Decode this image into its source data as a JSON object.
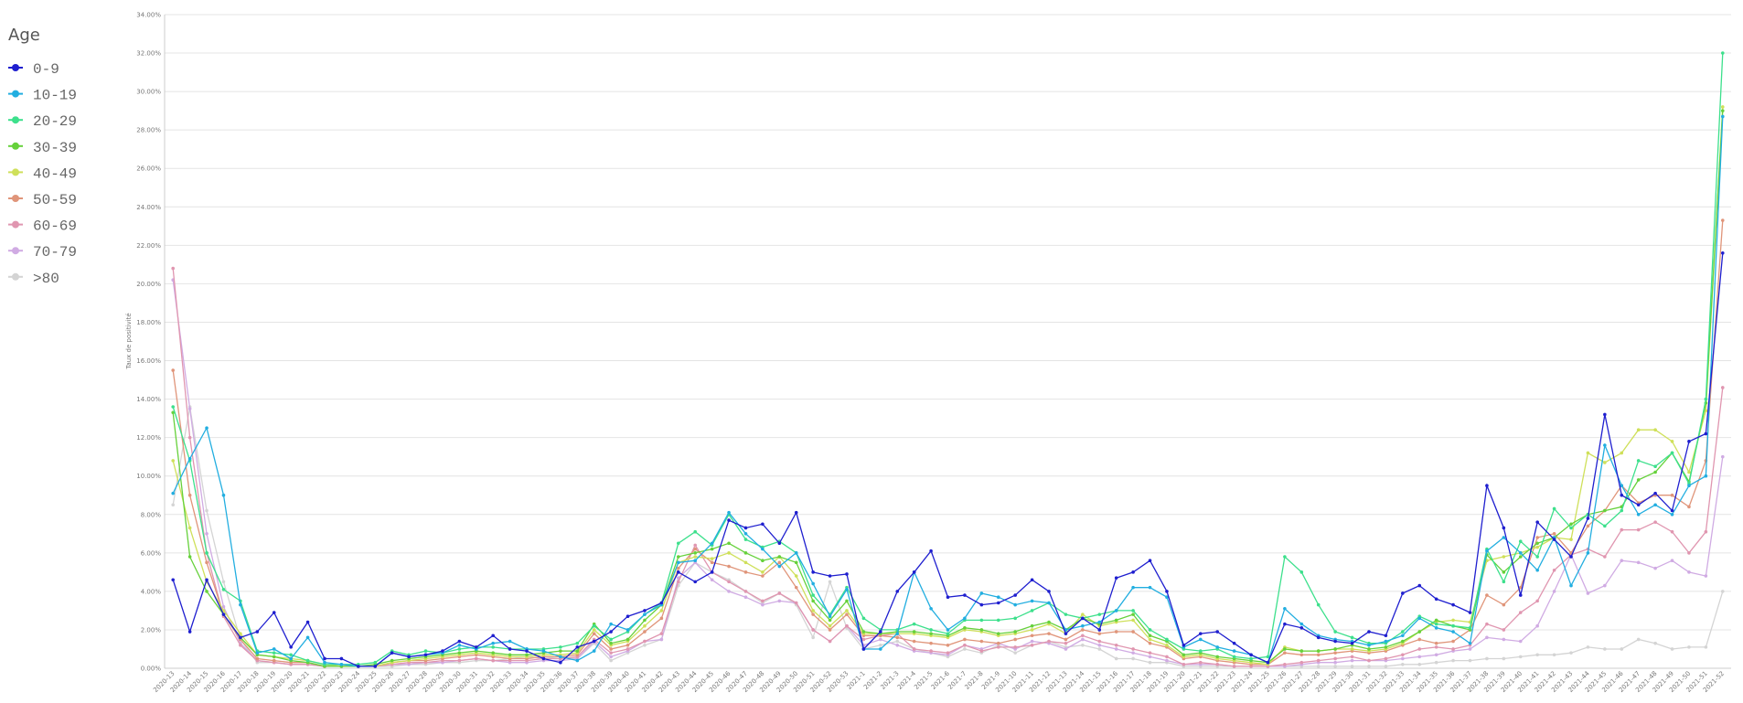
{
  "chart_data": {
    "type": "line",
    "y_label": "Taux de positivité",
    "legend_title": "Age",
    "legend": "left",
    "grid": true,
    "categories": [
      "2020-13",
      "2020-14",
      "2020-15",
      "2020-16",
      "2020-17",
      "2020-18",
      "2020-19",
      "2020-20",
      "2020-21",
      "2020-22",
      "2020-23",
      "2020-24",
      "2020-25",
      "2020-26",
      "2020-27",
      "2020-28",
      "2020-29",
      "2020-30",
      "2020-31",
      "2020-32",
      "2020-33",
      "2020-34",
      "2020-35",
      "2020-36",
      "2020-37",
      "2020-38",
      "2020-39",
      "2020-40",
      "2020-41",
      "2020-42",
      "2020-43",
      "2020-44",
      "2020-45",
      "2020-46",
      "2020-47",
      "2020-48",
      "2020-49",
      "2020-50",
      "2020-51",
      "2020-52",
      "2020-53",
      "2021-1",
      "2021-2",
      "2021-3",
      "2021-4",
      "2021-5",
      "2021-6",
      "2021-7",
      "2021-8",
      "2021-9",
      "2021-10",
      "2021-11",
      "2021-12",
      "2021-13",
      "2021-14",
      "2021-15",
      "2021-16",
      "2021-17",
      "2021-18",
      "2021-19",
      "2021-20",
      "2021-21",
      "2021-22",
      "2021-23",
      "2021-24",
      "2021-25",
      "2021-26",
      "2021-27",
      "2021-28",
      "2021-29",
      "2021-30",
      "2021-31",
      "2021-32",
      "2021-33",
      "2021-34",
      "2021-35",
      "2021-36",
      "2021-37",
      "2021-38",
      "2021-39",
      "2021-40",
      "2021-41",
      "2021-42",
      "2021-43",
      "2021-44",
      "2021-45",
      "2021-46",
      "2021-47",
      "2021-48",
      "2021-49",
      "2021-50",
      "2021-51",
      "2021-52"
    ],
    "ylim": [
      0,
      34
    ],
    "yticks": [
      {
        "value": 0,
        "label": "0.00%"
      },
      {
        "value": 2,
        "label": "2.00%"
      },
      {
        "value": 4,
        "label": "4.00%"
      },
      {
        "value": 6,
        "label": "6.00%"
      },
      {
        "value": 8,
        "label": "8.00%"
      },
      {
        "value": 10,
        "label": "10.00%"
      },
      {
        "value": 12,
        "label": "12.00%"
      },
      {
        "value": 14,
        "label": "14.00%"
      },
      {
        "value": 16,
        "label": "16.00%"
      },
      {
        "value": 18,
        "label": "18.00%"
      },
      {
        "value": 20,
        "label": "20.00%"
      },
      {
        "value": 22,
        "label": "22.00%"
      },
      {
        "value": 24,
        "label": "24.00%"
      },
      {
        "value": 26,
        "label": "26.00%"
      },
      {
        "value": 28,
        "label": "28.00%"
      },
      {
        "value": 30,
        "label": "30.00%"
      },
      {
        "value": 32,
        "label": "32.00%"
      },
      {
        "value": 34,
        "label": "34.00%"
      }
    ],
    "series": [
      {
        "name": "0-9",
        "color": "#1f1fcf",
        "values": [
          4.6,
          1.9,
          4.6,
          2.8,
          1.6,
          1.9,
          2.9,
          1.1,
          2.4,
          0.5,
          0.5,
          0.1,
          0.1,
          0.8,
          0.6,
          0.7,
          0.9,
          1.4,
          1.1,
          1.7,
          1.0,
          0.9,
          0.5,
          0.3,
          1.1,
          1.4,
          1.9,
          2.7,
          3.0,
          3.4,
          5.0,
          4.5,
          5.0,
          7.7,
          7.3,
          7.5,
          6.5,
          8.1,
          5.0,
          4.8,
          4.9,
          1.0,
          1.9,
          4.0,
          5.0,
          6.1,
          3.7,
          3.8,
          3.3,
          3.4,
          3.8,
          4.6,
          4.0,
          1.8,
          2.6,
          2.0,
          4.7,
          5.0,
          5.6,
          4.0,
          1.2,
          1.8,
          1.9,
          1.3,
          0.7,
          0.3,
          2.3,
          2.1,
          1.6,
          1.4,
          1.3,
          1.9,
          1.7,
          3.9,
          4.3,
          3.6,
          3.3,
          2.9,
          9.5,
          7.3,
          3.8,
          7.6,
          6.7,
          5.8,
          7.8,
          13.2,
          9.0,
          8.5,
          9.1,
          8.2,
          11.8,
          12.2,
          21.6
        ]
      },
      {
        "name": "10-19",
        "color": "#22aee0",
        "values": [
          9.1,
          10.9,
          12.5,
          9.0,
          3.3,
          0.8,
          1.0,
          0.5,
          1.6,
          0.3,
          0.2,
          0.1,
          0.1,
          0.8,
          0.6,
          0.7,
          0.8,
          1.2,
          1.0,
          1.3,
          1.4,
          1.0,
          0.9,
          0.6,
          0.4,
          0.9,
          2.3,
          2.0,
          2.8,
          3.3,
          5.5,
          5.6,
          6.5,
          8.1,
          7.0,
          6.2,
          5.3,
          6.0,
          4.4,
          2.7,
          4.1,
          1.0,
          1.0,
          1.8,
          5.0,
          3.1,
          2.0,
          2.6,
          3.9,
          3.7,
          3.3,
          3.5,
          3.4,
          2.0,
          2.2,
          2.4,
          3.0,
          4.2,
          4.2,
          3.7,
          1.1,
          1.5,
          1.1,
          0.9,
          0.7,
          0.3,
          3.1,
          2.3,
          1.7,
          1.5,
          1.4,
          1.2,
          1.4,
          1.7,
          2.6,
          2.1,
          1.9,
          1.3,
          6.1,
          6.8,
          6.0,
          5.1,
          6.8,
          4.3,
          6.0,
          11.6,
          9.5,
          8.0,
          8.5,
          8.0,
          9.5,
          10.0,
          28.7
        ]
      },
      {
        "name": "20-29",
        "color": "#3de08c",
        "values": [
          13.6,
          10.8,
          6.0,
          4.1,
          3.5,
          0.9,
          0.8,
          0.7,
          0.4,
          0.2,
          0.2,
          0.2,
          0.3,
          0.9,
          0.7,
          0.9,
          0.8,
          1.0,
          1.1,
          1.1,
          1.0,
          1.0,
          1.0,
          1.1,
          1.3,
          2.2,
          1.5,
          1.9,
          2.8,
          3.4,
          6.5,
          7.1,
          6.4,
          8.0,
          6.7,
          6.3,
          6.6,
          6.0,
          3.8,
          2.8,
          4.2,
          2.6,
          2.0,
          2.0,
          2.3,
          2.0,
          1.8,
          2.5,
          2.5,
          2.5,
          2.6,
          3.0,
          3.4,
          2.8,
          2.6,
          2.8,
          3.0,
          3.0,
          2.0,
          1.5,
          1.0,
          0.9,
          1.0,
          0.6,
          0.5,
          0.6,
          5.8,
          5.0,
          3.3,
          1.9,
          1.6,
          1.3,
          1.3,
          1.9,
          2.7,
          2.3,
          2.2,
          2.1,
          6.2,
          4.5,
          6.6,
          5.8,
          8.3,
          7.3,
          8.0,
          7.4,
          8.2,
          10.8,
          10.5,
          11.2,
          9.6,
          14.0,
          32.0
        ]
      },
      {
        "name": "30-39",
        "color": "#66d13b",
        "values": [
          13.3,
          5.8,
          4.0,
          2.8,
          1.6,
          0.7,
          0.6,
          0.4,
          0.3,
          0.1,
          0.1,
          0.1,
          0.2,
          0.4,
          0.5,
          0.6,
          0.7,
          0.8,
          0.9,
          0.8,
          0.7,
          0.7,
          0.8,
          0.9,
          0.9,
          2.3,
          1.3,
          1.5,
          2.5,
          3.3,
          5.8,
          6.0,
          6.2,
          6.5,
          6.0,
          5.6,
          5.8,
          5.5,
          3.5,
          2.5,
          3.5,
          1.9,
          1.8,
          1.9,
          1.9,
          1.8,
          1.7,
          2.1,
          2.0,
          1.8,
          1.9,
          2.2,
          2.4,
          2.0,
          2.6,
          2.3,
          2.5,
          2.8,
          1.7,
          1.4,
          0.7,
          0.8,
          0.6,
          0.5,
          0.4,
          0.3,
          1.0,
          0.9,
          0.9,
          1.0,
          1.2,
          1.0,
          1.1,
          1.4,
          1.9,
          2.5,
          2.2,
          2.0,
          5.9,
          5.0,
          5.8,
          6.5,
          6.8,
          7.5,
          8.0,
          8.2,
          8.4,
          9.8,
          10.2,
          11.2,
          9.7,
          13.8,
          29.0
        ]
      },
      {
        "name": "40-49",
        "color": "#cfe05a",
        "values": [
          10.8,
          7.3,
          4.5,
          3.0,
          1.8,
          0.7,
          0.6,
          0.5,
          0.4,
          0.2,
          0.1,
          0.1,
          0.1,
          0.3,
          0.4,
          0.5,
          0.6,
          0.7,
          0.8,
          0.7,
          0.6,
          0.6,
          0.7,
          0.7,
          0.8,
          2.0,
          1.2,
          1.4,
          2.2,
          3.0,
          5.5,
          5.8,
          5.7,
          6.0,
          5.5,
          5.0,
          5.8,
          4.8,
          3.0,
          2.2,
          3.0,
          1.8,
          1.8,
          1.8,
          1.8,
          1.7,
          1.6,
          2.0,
          1.9,
          1.7,
          1.8,
          2.0,
          2.3,
          1.8,
          2.8,
          2.2,
          2.4,
          2.5,
          1.5,
          1.2,
          0.6,
          0.7,
          0.5,
          0.4,
          0.3,
          0.2,
          1.1,
          0.9,
          0.9,
          1.0,
          1.0,
          0.9,
          1.0,
          1.3,
          1.9,
          2.4,
          2.5,
          2.4,
          5.6,
          5.8,
          6.0,
          6.3,
          6.8,
          6.7,
          11.2,
          10.7,
          11.2,
          12.4,
          12.4,
          11.8,
          10.2,
          13.4,
          29.2
        ]
      },
      {
        "name": "50-59",
        "color": "#e0957a",
        "values": [
          15.5,
          9.0,
          5.5,
          2.8,
          1.5,
          0.5,
          0.4,
          0.3,
          0.3,
          0.1,
          0.1,
          0.1,
          0.1,
          0.3,
          0.4,
          0.4,
          0.5,
          0.6,
          0.7,
          0.6,
          0.5,
          0.5,
          0.6,
          0.6,
          0.7,
          1.8,
          1.0,
          1.2,
          1.9,
          2.6,
          5.2,
          6.2,
          5.5,
          5.3,
          5.0,
          4.8,
          5.5,
          4.2,
          2.8,
          2.0,
          2.8,
          1.7,
          1.7,
          1.6,
          1.4,
          1.3,
          1.2,
          1.5,
          1.4,
          1.3,
          1.5,
          1.7,
          1.8,
          1.5,
          2.0,
          1.8,
          1.9,
          1.9,
          1.3,
          1.1,
          0.5,
          0.6,
          0.4,
          0.3,
          0.2,
          0.2,
          0.8,
          0.7,
          0.7,
          0.8,
          0.9,
          0.8,
          0.9,
          1.2,
          1.5,
          1.3,
          1.4,
          2.0,
          3.8,
          3.3,
          4.2,
          6.8,
          7.0,
          6.0,
          7.4,
          8.2,
          9.5,
          8.6,
          9.0,
          9.0,
          8.4,
          10.8,
          23.3
        ]
      },
      {
        "name": "60-69",
        "color": "#e096b0",
        "values": [
          20.8,
          12.0,
          6.0,
          2.7,
          1.2,
          0.4,
          0.3,
          0.2,
          0.2,
          0.1,
          0.1,
          0.1,
          0.1,
          0.2,
          0.3,
          0.3,
          0.4,
          0.4,
          0.5,
          0.4,
          0.4,
          0.4,
          0.5,
          0.5,
          0.6,
          1.5,
          0.8,
          1.0,
          1.4,
          1.8,
          4.5,
          6.4,
          5.0,
          4.5,
          4.0,
          3.5,
          3.9,
          3.4,
          2.0,
          1.4,
          2.2,
          1.5,
          1.7,
          1.8,
          1.0,
          0.9,
          0.8,
          1.2,
          0.9,
          1.1,
          1.1,
          1.2,
          1.4,
          1.3,
          1.7,
          1.4,
          1.2,
          1.0,
          0.8,
          0.6,
          0.2,
          0.3,
          0.2,
          0.1,
          0.1,
          0.1,
          0.2,
          0.3,
          0.4,
          0.5,
          0.6,
          0.4,
          0.5,
          0.7,
          1.0,
          1.1,
          1.0,
          1.2,
          2.3,
          2.0,
          2.9,
          3.5,
          5.1,
          5.9,
          6.2,
          5.8,
          7.2,
          7.2,
          7.6,
          7.1,
          6.0,
          7.1,
          14.6
        ]
      },
      {
        "name": "70-79",
        "color": "#d0abe3",
        "values": [
          20.2,
          13.5,
          7.0,
          3.2,
          1.3,
          0.4,
          0.3,
          0.2,
          0.2,
          0.1,
          0.1,
          0.1,
          0.1,
          0.2,
          0.2,
          0.3,
          0.3,
          0.4,
          0.5,
          0.4,
          0.3,
          0.3,
          0.4,
          0.4,
          0.5,
          1.4,
          0.6,
          0.9,
          1.4,
          1.5,
          4.7,
          5.5,
          4.6,
          4.0,
          3.7,
          3.3,
          3.5,
          3.4,
          2.0,
          1.4,
          2.2,
          1.2,
          1.5,
          1.2,
          0.9,
          0.8,
          0.7,
          1.2,
          1.0,
          1.3,
          1.0,
          1.4,
          1.3,
          1.0,
          1.5,
          1.2,
          1.0,
          0.8,
          0.6,
          0.4,
          0.2,
          0.2,
          0.2,
          0.1,
          0.1,
          0.1,
          0.1,
          0.2,
          0.3,
          0.3,
          0.4,
          0.4,
          0.4,
          0.5,
          0.6,
          0.7,
          0.9,
          1.0,
          1.6,
          1.5,
          1.4,
          2.2,
          4.0,
          5.9,
          3.9,
          4.3,
          5.6,
          5.5,
          5.2,
          5.6,
          5.0,
          4.8,
          11.0
        ]
      },
      {
        "name": ">80",
        "color": "#d4d4d4",
        "values": [
          8.5,
          13.6,
          8.2,
          4.5,
          1.5,
          0.3,
          0.3,
          0.2,
          0.2,
          0.1,
          0.1,
          0.1,
          0.1,
          0.1,
          0.2,
          0.2,
          0.3,
          0.3,
          0.4,
          0.4,
          0.5,
          0.6,
          0.5,
          0.6,
          0.5,
          1.3,
          0.4,
          0.8,
          1.2,
          1.5,
          4.3,
          5.5,
          5.0,
          4.6,
          4.0,
          3.4,
          3.9,
          3.3,
          1.6,
          4.5,
          2.1,
          1.0,
          1.2,
          1.4,
          1.0,
          0.8,
          0.6,
          1.0,
          0.8,
          1.2,
          0.8,
          1.2,
          1.4,
          1.1,
          1.2,
          1.0,
          0.5,
          0.5,
          0.3,
          0.3,
          0.1,
          0.1,
          0.1,
          0.1,
          0.1,
          0.1,
          0.1,
          0.1,
          0.1,
          0.1,
          0.1,
          0.1,
          0.1,
          0.2,
          0.2,
          0.3,
          0.4,
          0.4,
          0.5,
          0.5,
          0.6,
          0.7,
          0.7,
          0.8,
          1.1,
          1.0,
          1.0,
          1.5,
          1.3,
          1.0,
          1.1,
          1.1,
          4.0
        ]
      }
    ]
  }
}
